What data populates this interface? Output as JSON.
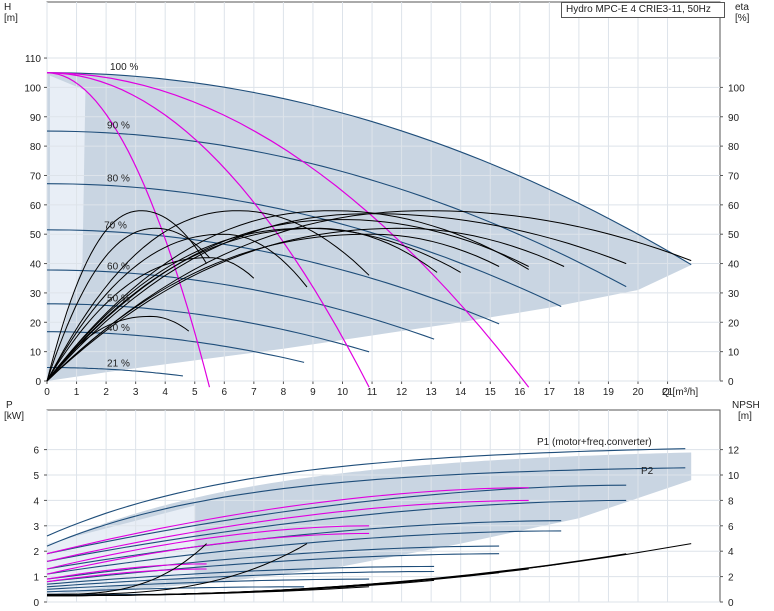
{
  "chart_data": [
    {
      "id": "head",
      "type": "line",
      "title": "Hydro MPC-E 4 CRIE3-11, 50Hz",
      "xlabel": "Q [m³/h]",
      "ylabel_left": "H\n[m]",
      "ylabel_right": "eta\n[%]",
      "xlim": [
        0,
        22
      ],
      "ylim": [
        0,
        120
      ],
      "y2lim": [
        0,
        120
      ],
      "xticks": [
        0,
        1,
        2,
        3,
        4,
        5,
        6,
        7,
        8,
        9,
        10,
        11,
        12,
        13,
        14,
        15,
        16,
        17,
        18,
        19,
        20,
        21
      ],
      "yticks": [
        0,
        10,
        20,
        30,
        40,
        50,
        60,
        70,
        80,
        90,
        100,
        110
      ],
      "y2ticks": [
        0,
        10,
        20,
        30,
        40,
        50,
        60,
        70,
        80,
        90,
        100
      ],
      "grid": true,
      "speed_labels": [
        {
          "text": "100 %",
          "q": 2.2,
          "h": 106
        },
        {
          "text": "90 %",
          "q": 2.1,
          "h": 86
        },
        {
          "text": "80 %",
          "q": 2.1,
          "h": 68
        },
        {
          "text": "70 %",
          "q": 2.0,
          "h": 52
        },
        {
          "text": "60 %",
          "q": 2.1,
          "h": 38
        },
        {
          "text": "50 %",
          "q": 2.1,
          "h": 27
        },
        {
          "text": "40 %",
          "q": 2.1,
          "h": 17
        },
        {
          "text": "21 %",
          "q": 2.1,
          "h": 5
        }
      ],
      "envelope_h": {
        "q": [
          0,
          3,
          6,
          9,
          12,
          15,
          18,
          20,
          21.8,
          21.8,
          20,
          17,
          14,
          11,
          8,
          5,
          2,
          0
        ],
        "h": [
          105,
          103.7,
          99.9,
          93.5,
          84.5,
          73.0,
          58.8,
          48.0,
          39.5,
          39.5,
          31,
          25,
          20,
          15.5,
          11,
          7,
          3,
          0
        ]
      },
      "shade_dark": {
        "q": [
          1.2,
          1.8,
          3.0,
          4.3
        ],
        "h": [
          96,
          99.2,
          98.7,
          98.2
        ]
      },
      "speed_curves": [
        {
          "name": "100 %",
          "shut": 105,
          "qmax": 21.8
        },
        {
          "name": "90 %",
          "shut": 85.1,
          "qmax": 19.6
        },
        {
          "name": "80 %",
          "shut": 67.2,
          "qmax": 17.4
        },
        {
          "name": "70 %",
          "shut": 51.5,
          "qmax": 15.3
        },
        {
          "name": "60 %",
          "shut": 37.8,
          "qmax": 13.1
        },
        {
          "name": "50 %",
          "shut": 26.3,
          "qmax": 10.9
        },
        {
          "name": "40 %",
          "shut": 16.8,
          "qmax": 8.7
        },
        {
          "name": "21 %",
          "shut": 4.6,
          "qmax": 4.6
        }
      ],
      "magenta_curves": [
        {
          "shut": 105,
          "q0": 0.0,
          "q1": 5.5
        },
        {
          "shut": 105,
          "q0": 0.0,
          "q1": 10.9
        },
        {
          "shut": 105,
          "q0": 0.0,
          "q1": 16.3
        }
      ],
      "eta_curves": [
        {
          "peak": 58,
          "qpk": 3.2,
          "qmax": 5.4,
          "end": 40
        },
        {
          "peak": 52,
          "qpk": 3.7,
          "qmax": 5.5,
          "end": 42
        },
        {
          "peak": 22,
          "qpk": 3.5,
          "qmax": 4.8,
          "end": 17
        },
        {
          "peak": 58,
          "qpk": 6.5,
          "qmax": 10.9,
          "end": 36
        },
        {
          "peak": 50,
          "qpk": 6.0,
          "qmax": 8.8,
          "end": 32
        },
        {
          "peak": 42,
          "qpk": 5.5,
          "qmax": 7.0,
          "end": 35
        },
        {
          "peak": 58,
          "qpk": 9.7,
          "qmax": 16.3,
          "end": 38
        },
        {
          "peak": 52,
          "qpk": 9.2,
          "qmax": 13.2,
          "end": 37
        },
        {
          "peak": 58,
          "qpk": 13.0,
          "qmax": 21.8,
          "end": 41
        },
        {
          "peak": 52,
          "qpk": 12.0,
          "qmax": 17.5,
          "end": 39
        },
        {
          "peak": 50,
          "qpk": 11.0,
          "qmax": 15.3,
          "end": 39
        },
        {
          "peak": 57,
          "qpk": 11.0,
          "qmax": 19.6,
          "end": 40
        },
        {
          "peak": 55,
          "qpk": 10.0,
          "qmax": 16.3,
          "end": 39
        },
        {
          "peak": 52,
          "qpk": 8.8,
          "qmax": 14.0,
          "end": 37
        }
      ]
    },
    {
      "id": "power",
      "type": "line",
      "xlabel": "",
      "ylabel_left": "P\n[kW]",
      "ylabel_right": "NPSH\n[m]",
      "xlim": [
        0,
        22
      ],
      "ylim": [
        0,
        7
      ],
      "y2lim": [
        0,
        14
      ],
      "yticks": [
        0,
        1,
        2,
        3,
        4,
        5,
        6
      ],
      "y2ticks": [
        0,
        2,
        4,
        6,
        8,
        10,
        12
      ],
      "grid": true,
      "legend_labels": [
        "P1 (motor+freq.converter)",
        "P2"
      ],
      "envelope_p": {
        "q": [
          0,
          5,
          10,
          15,
          20,
          21.8,
          21.8,
          18,
          14,
          10,
          6,
          2,
          0
        ],
        "p": [
          2.1,
          3.9,
          5.0,
          5.6,
          6.0,
          6.1,
          4.8,
          3.3,
          2.3,
          1.4,
          0.8,
          0.4,
          0.3
        ]
      },
      "p1_upper": {
        "q": [
          0,
          4,
          8,
          12,
          16,
          20,
          21.8
        ],
        "p": [
          2.6,
          3.9,
          4.9,
          5.5,
          5.9,
          6.1,
          6.2
        ]
      },
      "p2_upper": {
        "q": [
          0,
          4,
          8,
          12,
          16,
          20,
          21.8
        ],
        "p": [
          2.2,
          3.6,
          4.5,
          5.0,
          5.3,
          5.4,
          5.4
        ]
      },
      "power_curves": [
        {
          "p0": 1.9,
          "q1": 19.6,
          "p1": 4.6,
          "color": "#1f4e7a"
        },
        {
          "p0": 1.6,
          "q1": 19.6,
          "p1": 4.0,
          "color": "#1f4e7a"
        },
        {
          "p0": 1.9,
          "q1": 16.3,
          "p1": 4.5,
          "color": "#e000e0"
        },
        {
          "p0": 1.6,
          "q1": 16.3,
          "p1": 4.0,
          "color": "#e000e0"
        },
        {
          "p0": 1.3,
          "q1": 17.4,
          "p1": 3.2,
          "color": "#1f4e7a"
        },
        {
          "p0": 1.1,
          "q1": 17.4,
          "p1": 2.8,
          "color": "#1f4e7a"
        },
        {
          "p0": 1.3,
          "q1": 10.9,
          "p1": 3.0,
          "color": "#e000e0"
        },
        {
          "p0": 1.1,
          "q1": 10.9,
          "p1": 2.7,
          "color": "#e000e0"
        },
        {
          "p0": 0.9,
          "q1": 15.3,
          "p1": 2.2,
          "color": "#1f4e7a"
        },
        {
          "p0": 0.8,
          "q1": 15.3,
          "p1": 1.9,
          "color": "#1f4e7a"
        },
        {
          "p0": 0.7,
          "q1": 13.1,
          "p1": 1.4,
          "color": "#1f4e7a"
        },
        {
          "p0": 0.6,
          "q1": 13.1,
          "p1": 1.2,
          "color": "#1f4e7a"
        },
        {
          "p0": 0.5,
          "q1": 10.9,
          "p1": 0.9,
          "color": "#1f4e7a"
        },
        {
          "p0": 0.4,
          "q1": 8.7,
          "p1": 0.6,
          "color": "#1f4e7a"
        },
        {
          "p0": 0.3,
          "q1": 4.7,
          "p1": 0.3,
          "color": "#1f4e7a"
        },
        {
          "p0": 0.9,
          "q1": 5.4,
          "p1": 1.5,
          "color": "#e000e0"
        },
        {
          "p0": 0.8,
          "q1": 5.4,
          "p1": 1.3,
          "color": "#e000e0"
        }
      ],
      "npsh_curves": [
        {
          "qmax": 21.8,
          "npsh": 4.6
        },
        {
          "qmax": 19.6,
          "npsh": 3.8
        },
        {
          "qmax": 17.4,
          "npsh": 3.0
        },
        {
          "qmax": 16.3,
          "npsh": 2.6
        },
        {
          "qmax": 15.3,
          "npsh": 2.3
        },
        {
          "qmax": 13.1,
          "npsh": 1.7
        },
        {
          "qmax": 10.9,
          "npsh": 1.2
        },
        {
          "qmax": 8.8,
          "npsh": 4.6,
          "steep": true
        },
        {
          "qmax": 5.4,
          "npsh": 4.6,
          "steep": true
        }
      ]
    }
  ],
  "colors": {
    "fill": "#c9d5e2",
    "fill_light": "#e8eef6",
    "grid": "#dde3ea",
    "speed": "#1f4e7a",
    "magenta": "#e000e0",
    "eta": "#000000"
  }
}
